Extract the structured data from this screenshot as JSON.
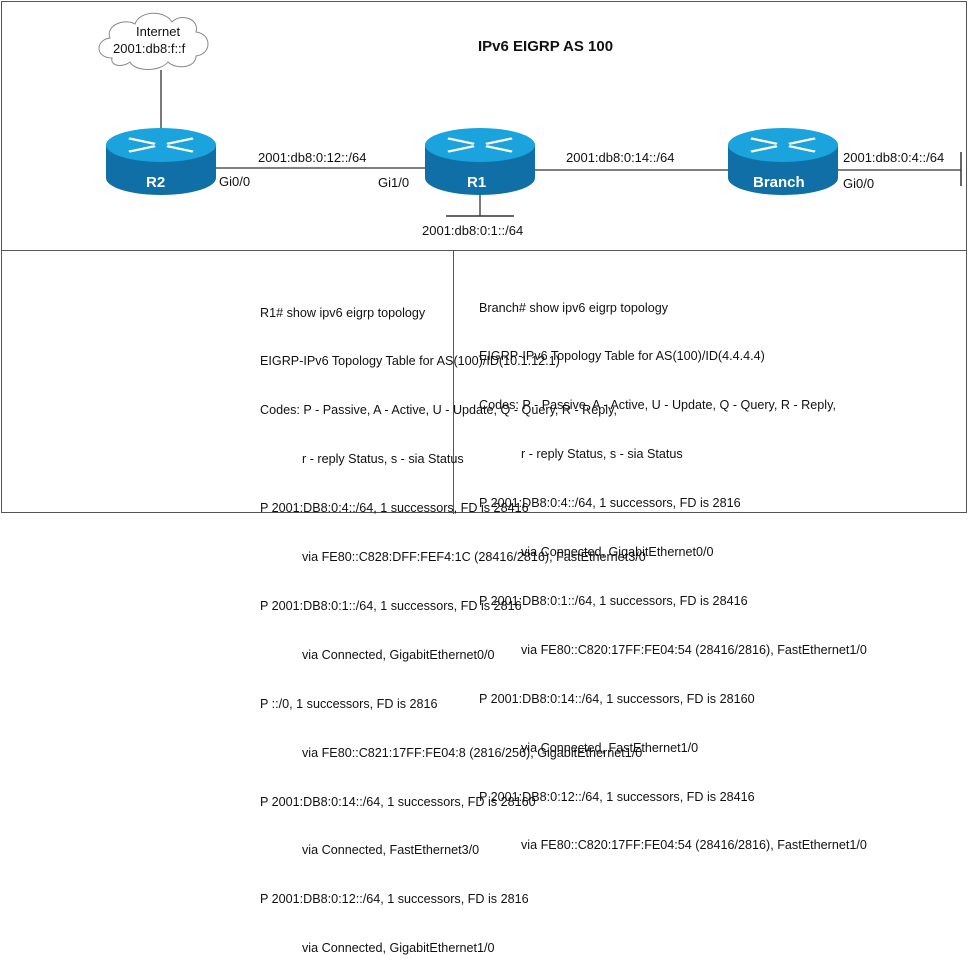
{
  "diagram": {
    "title": "IPv6 EIGRP AS 100",
    "cloud": {
      "name": "Internet",
      "address": "2001:db8:f::f"
    },
    "routers": [
      {
        "name": "R2",
        "interface": "Gi0/0"
      },
      {
        "name": "R1",
        "interface_left": "Gi1/0",
        "lan": "2001:db8:0:1::/64"
      },
      {
        "name": "Branch",
        "interface": "Gi0/0",
        "lan": "2001:db8:0:4::/64"
      }
    ],
    "links": [
      "2001:db8:0:12::/64",
      "2001:db8:0:14::/64"
    ],
    "colors": {
      "router_top": "#1aa3dc",
      "router_side": "#0f6fa6",
      "lines": "#333333"
    }
  },
  "r1_output": [
    "R1# show ipv6 eigrp topology",
    "EIGRP-IPv6 Topology Table for AS(100)/ID(10.1.12.1)",
    "Codes: P - Passive, A - Active, U - Update, Q - Query, R - Reply,",
    "r - reply Status, s - sia Status",
    "P 2001:DB8:0:4::/64, 1 successors, FD is 28416",
    "via FE80::C828:DFF:FEF4:1C (28416/2816), FastEthernet3/0",
    "P 2001:DB8:0:1::/64, 1 successors, FD is 2816",
    "via Connected, GigabitEthernet0/0",
    "P ::/0, 1 successors, FD is 2816",
    "via FE80::C821:17FF:FE04:8 (2816/256), GigabitEthernet1/0",
    "P 2001:DB8:0:14::/64, 1 successors, FD is 28160",
    "via Connected, FastEthernet3/0",
    "P 2001:DB8:0:12::/64, 1 successors, FD is 2816",
    "via Connected, GigabitEthernet1/0"
  ],
  "branch_output": [
    "Branch# show ipv6 eigrp topology",
    "EIGRP-IPv6 Topology Table for AS(100)/ID(4.4.4.4)",
    "Codes: P - Passive, A - Active, U - Update, Q - Query, R - Reply,",
    "r - reply Status, s - sia Status",
    "P 2001:DB8:0:4::/64, 1 successors, FD is 2816",
    "via Connected, GigabitEthernet0/0",
    "P 2001:DB8:0:1::/64, 1 successors, FD is 28416",
    "via FE80::C820:17FF:FE04:54 (28416/2816), FastEthernet1/0",
    "P 2001:DB8:0:14::/64, 1 successors, FD is 28160",
    "via Connected, FastEthernet1/0",
    "P 2001:DB8:0:12::/64, 1 successors, FD is 28416",
    "via FE80::C820:17FF:FE04:54 (28416/2816), FastEthernet1/0"
  ]
}
